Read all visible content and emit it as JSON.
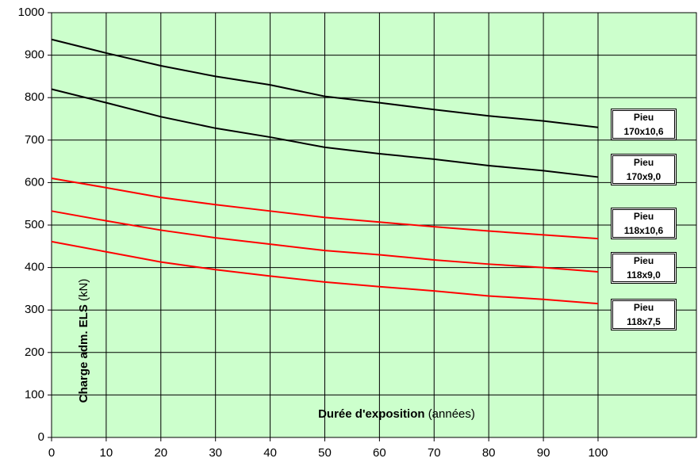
{
  "chart_data": {
    "type": "line",
    "xlabel": {
      "bold": "Durée d'exposition",
      "normal": "(années)"
    },
    "ylabel": {
      "bold": "Charge adm. ELS",
      "normal": "(kN)"
    },
    "x": [
      0,
      10,
      20,
      30,
      40,
      50,
      60,
      70,
      80,
      90,
      100
    ],
    "series": [
      {
        "name": "Pieu\n170x10,6",
        "color": "#000000",
        "values": [
          937,
          905,
          875,
          850,
          830,
          803,
          788,
          772,
          757,
          745,
          730
        ]
      },
      {
        "name": "Pieu\n170x9,0",
        "color": "#000000",
        "values": [
          820,
          788,
          755,
          728,
          707,
          683,
          668,
          655,
          640,
          628,
          613
        ]
      },
      {
        "name": "Pieu\n118x10,6",
        "color": "#ff0000",
        "values": [
          610,
          588,
          565,
          548,
          533,
          518,
          507,
          496,
          486,
          477,
          468
        ]
      },
      {
        "name": "Pieu\n118x9,0",
        "color": "#ff0000",
        "values": [
          533,
          510,
          488,
          470,
          455,
          440,
          430,
          418,
          408,
          400,
          390
        ]
      },
      {
        "name": "Pieu\n118x7,5",
        "color": "#ff0000",
        "values": [
          461,
          437,
          413,
          395,
          380,
          366,
          355,
          345,
          333,
          325,
          315
        ]
      }
    ],
    "xlim": [
      0,
      118
    ],
    "xticks": [
      0,
      10,
      20,
      30,
      40,
      50,
      60,
      70,
      80,
      90,
      100
    ],
    "ylim": [
      0,
      1000
    ],
    "yticks": [
      0,
      100,
      200,
      300,
      400,
      500,
      600,
      700,
      800,
      900,
      1000
    ],
    "grid": true,
    "background": "#ccffcc"
  }
}
